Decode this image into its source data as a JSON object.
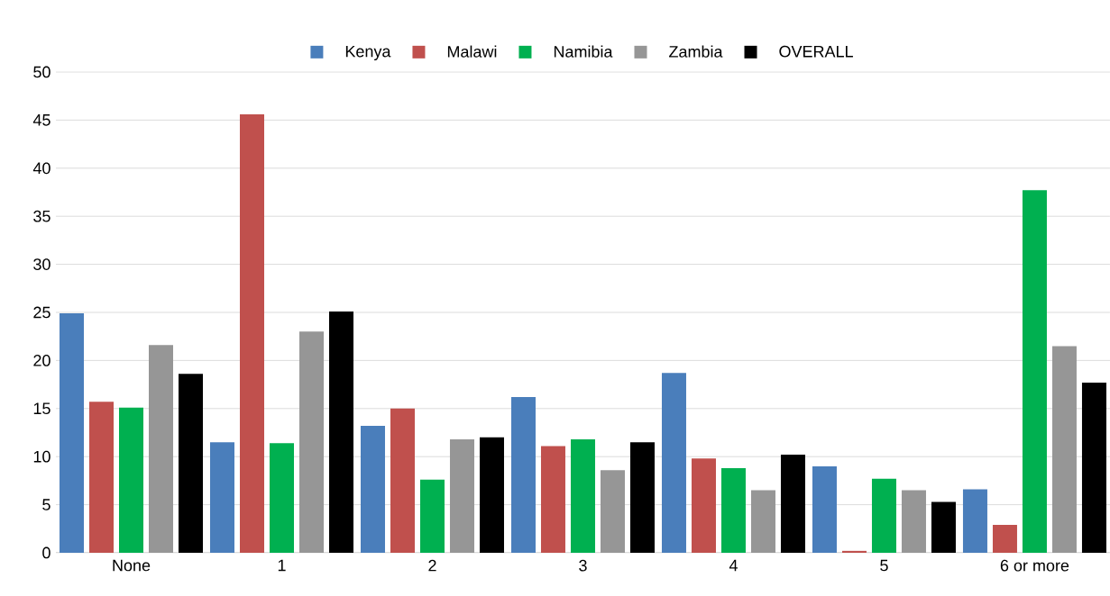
{
  "chart_data": {
    "type": "bar",
    "categories": [
      "None",
      "1",
      "2",
      "3",
      "4",
      "5",
      "6 or more"
    ],
    "series": [
      {
        "name": "Kenya",
        "color": "#4a7ebb",
        "values": [
          24.9,
          11.5,
          13.2,
          16.2,
          18.7,
          9.0,
          6.6
        ]
      },
      {
        "name": "Malawi",
        "color": "#c0504d",
        "values": [
          15.7,
          45.6,
          15.0,
          11.1,
          9.8,
          0.2,
          2.9
        ]
      },
      {
        "name": "Namibia",
        "color": "#00b050",
        "values": [
          15.1,
          11.4,
          7.6,
          11.8,
          8.8,
          7.7,
          37.7
        ]
      },
      {
        "name": "Zambia",
        "color": "#969696",
        "values": [
          21.6,
          23.0,
          11.8,
          8.6,
          6.5,
          6.5,
          21.5
        ]
      },
      {
        "name": "OVERALL",
        "color": "#000000",
        "values": [
          18.6,
          25.1,
          12.0,
          11.5,
          10.2,
          5.3,
          17.7
        ]
      }
    ],
    "ylim": [
      0,
      50
    ],
    "yticks": [
      0,
      5,
      10,
      15,
      20,
      25,
      30,
      35,
      40,
      45,
      50
    ],
    "grid": "y",
    "legend": "top"
  }
}
